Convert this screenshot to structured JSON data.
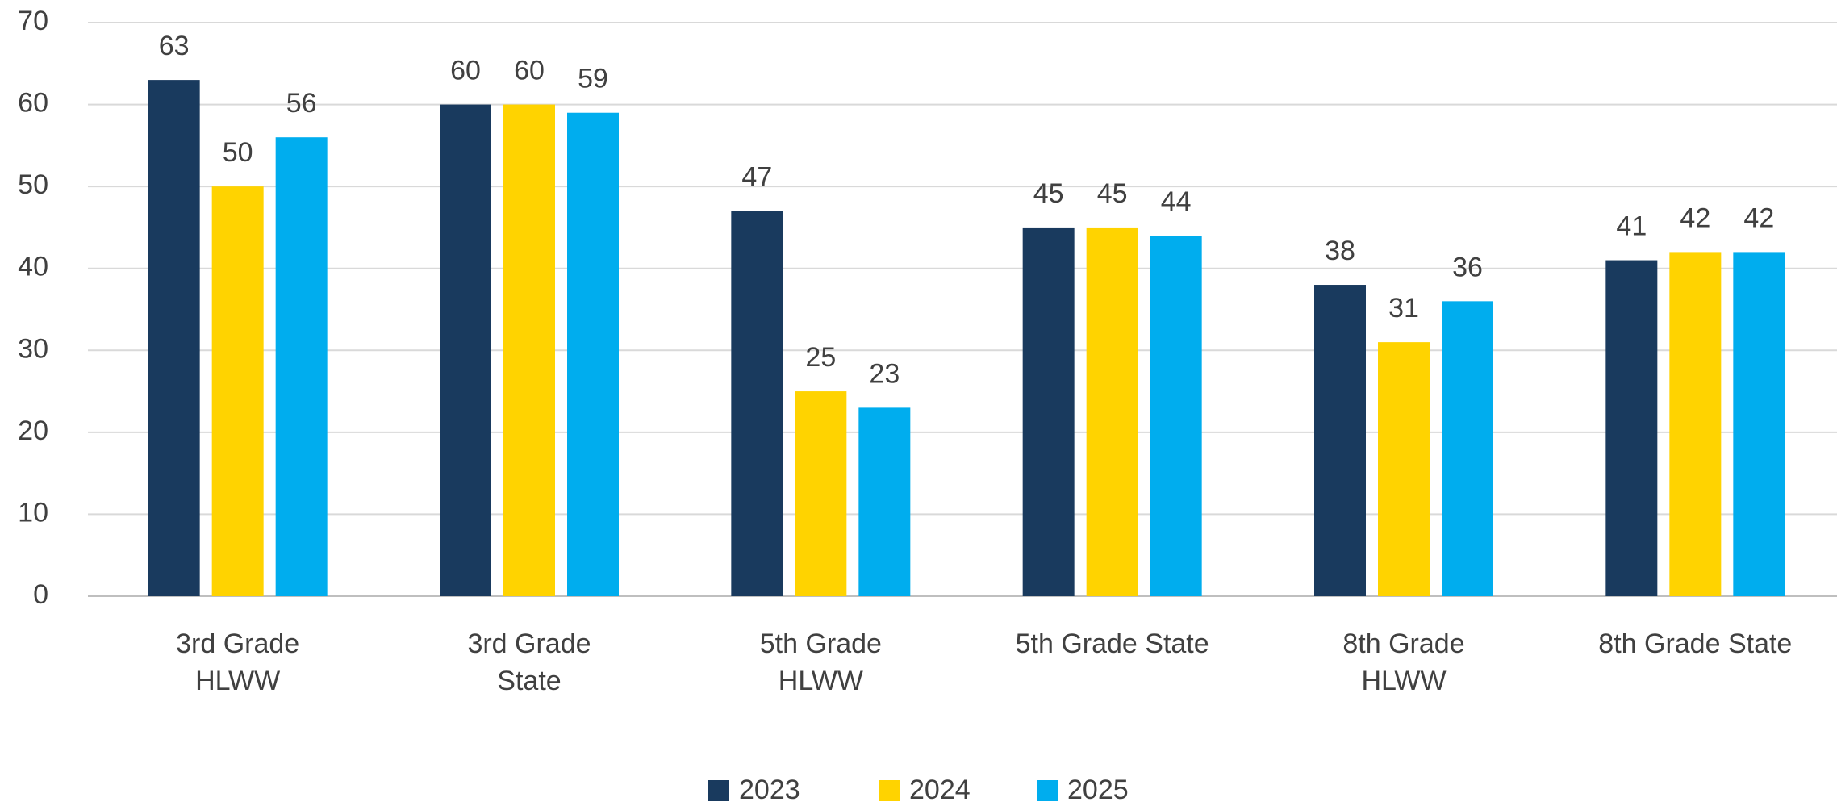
{
  "chart_data": {
    "type": "bar",
    "categories": [
      "3rd Grade\nHLWW",
      "3rd Grade\nState",
      "5th Grade\nHLWW",
      "5th Grade State",
      "8th Grade\nHLWW",
      "8th Grade State"
    ],
    "series": [
      {
        "name": "2023",
        "color": "#193a5e",
        "values": [
          63,
          60,
          47,
          45,
          38,
          41
        ]
      },
      {
        "name": "2024",
        "color": "#ffd300",
        "values": [
          50,
          60,
          25,
          45,
          31,
          42
        ]
      },
      {
        "name": "2025",
        "color": "#00adee",
        "values": [
          56,
          59,
          23,
          44,
          36,
          42
        ]
      }
    ],
    "ylim": [
      0,
      70
    ],
    "yticks": [
      0,
      10,
      20,
      30,
      40,
      50,
      60,
      70
    ],
    "grid": true,
    "legend": "bottom"
  }
}
